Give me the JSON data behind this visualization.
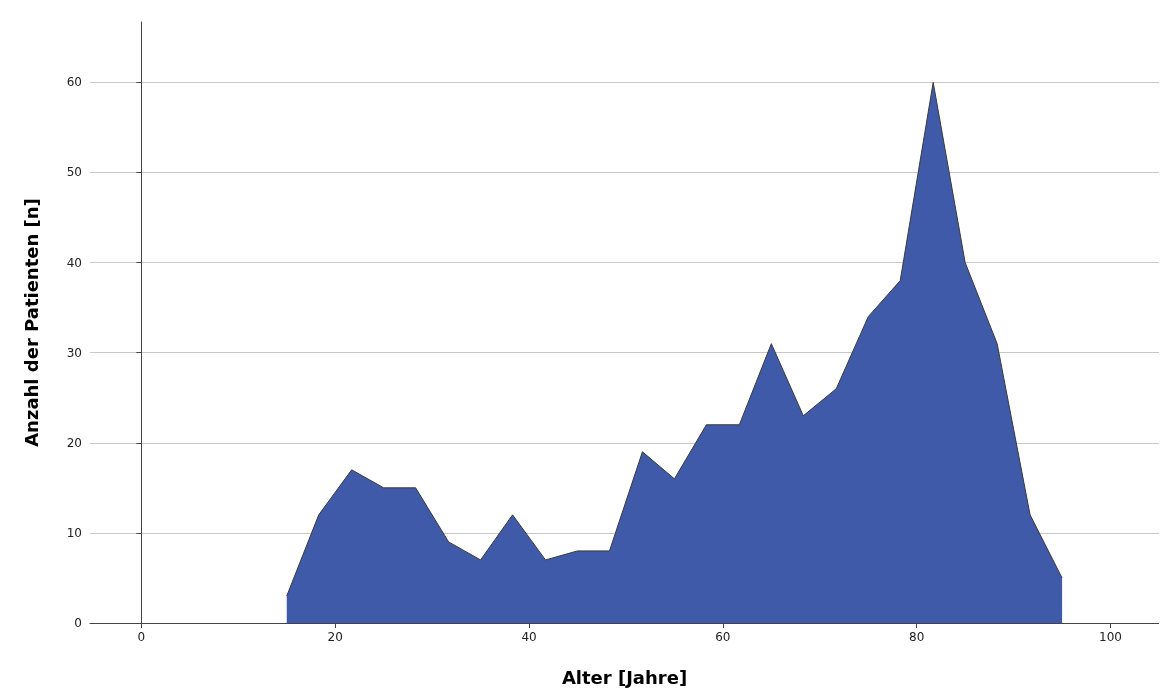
{
  "chart_data": {
    "type": "area",
    "xlabel": "Alter [Jahre]",
    "ylabel": "Anzahl der Patienten [n]",
    "x": [
      15,
      18.3,
      21.7,
      25,
      28.3,
      31.7,
      35,
      38.3,
      41.7,
      45,
      48.3,
      51.7,
      55,
      58.3,
      61.7,
      65,
      68.3,
      71.7,
      75,
      78.3,
      81.7,
      85,
      88.3,
      91.7,
      95
    ],
    "series": [
      {
        "color": "#3f5aa8",
        "values": [
          3,
          12,
          17,
          15,
          15,
          9,
          7,
          12,
          7,
          8,
          8,
          19,
          16,
          22,
          22,
          31,
          23,
          26,
          34,
          38,
          60,
          40,
          31,
          12,
          5
        ]
      }
    ],
    "xlim": [
      -5.3,
      105
    ],
    "xticks": [
      0,
      20,
      40,
      60,
      80,
      100
    ],
    "ylim": [
      0,
      66.7
    ],
    "yticks": [
      0,
      10,
      20,
      30,
      40,
      50,
      60
    ],
    "grid": "y"
  }
}
